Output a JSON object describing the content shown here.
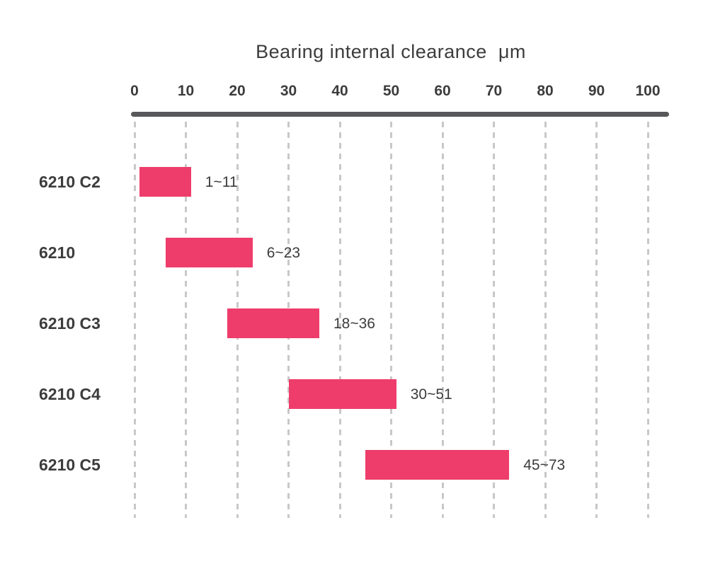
{
  "chart_data": {
    "type": "bar",
    "variant": "horizontal-range",
    "title": "Bearing internal clearance  μm",
    "xlabel": "Bearing internal clearance (μm)",
    "ylabel": "",
    "xlim": [
      0,
      105
    ],
    "x_ticks": [
      0,
      10,
      20,
      30,
      40,
      50,
      60,
      70,
      80,
      90,
      100
    ],
    "grid": "dashed-vertical",
    "legend": "none",
    "categories": [
      "6210 C2",
      "6210",
      "6210 C3",
      "6210 C4",
      "6210 C5"
    ],
    "series": [
      {
        "name": "6210 C2",
        "min": 1,
        "max": 11,
        "label": "1~11"
      },
      {
        "name": "6210",
        "min": 6,
        "max": 23,
        "label": "6~23"
      },
      {
        "name": "6210 C3",
        "min": 18,
        "max": 36,
        "label": "18~36"
      },
      {
        "name": "6210 C4",
        "min": 30,
        "max": 51,
        "label": "30~51"
      },
      {
        "name": "6210 C5",
        "min": 45,
        "max": 73,
        "label": "45~73"
      }
    ],
    "colors": {
      "bar": "#ee3d6b",
      "axis": "#58585a",
      "grid": "#c8c8c8",
      "text": "#3c3c3c"
    }
  }
}
